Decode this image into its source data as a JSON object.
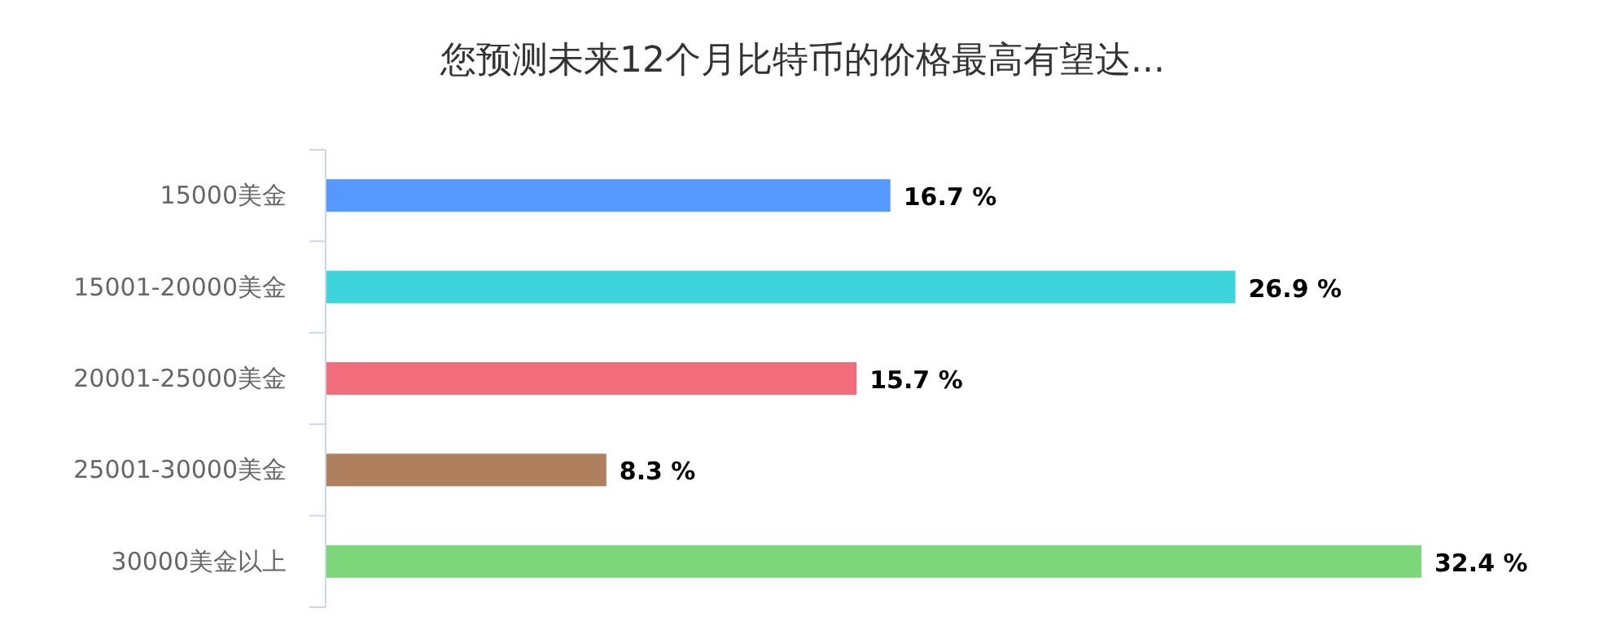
{
  "chart_data": {
    "type": "bar",
    "orientation": "horizontal",
    "title": "您预测未来12个月比特币的价格最高有望达...",
    "categories": [
      "15000美金",
      "15001-20000美金",
      "20001-25000美金",
      "25001-30000美金",
      "30000美金以上"
    ],
    "values": [
      16.7,
      26.9,
      15.7,
      8.3,
      32.4
    ],
    "colors": [
      "#5599ff",
      "#3dd4dc",
      "#f26d7b",
      "#b0805e",
      "#7dd67a"
    ],
    "value_labels": [
      "16.7 %",
      "26.9 %",
      "15.7 %",
      "8.3 %",
      "32.4 %"
    ]
  }
}
